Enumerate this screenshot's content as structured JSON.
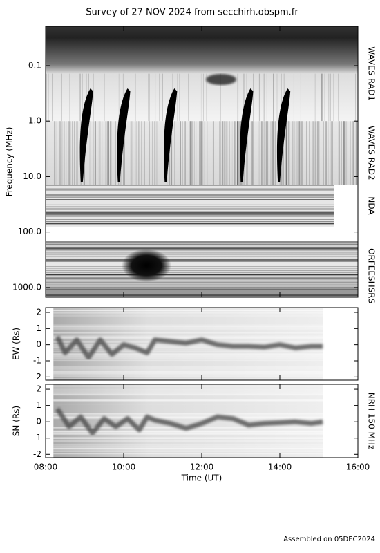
{
  "title": "Survey of 27 NOV 2024 from secchirh.obspm.fr",
  "nrh_label": "NRH 150 MHz",
  "footer": "Assembled on 05DEC2024",
  "chart_data": [
    {
      "type": "spectrogram",
      "ylabel": "Frequency (MHz)",
      "log_y": true,
      "ylim": [
        0.0195,
        1500
      ],
      "yticks": [
        {
          "value": 0.1,
          "label": "0.1"
        },
        {
          "value": 1,
          "label": "1.0"
        },
        {
          "value": 10,
          "label": "10.0"
        },
        {
          "value": 100,
          "label": "100.0"
        },
        {
          "value": 1000,
          "label": "1000.0"
        }
      ],
      "xlim": [
        8,
        16
      ],
      "bands": [
        {
          "name": "WAVES RAD1",
          "range": [
            0.0195,
            1
          ],
          "time": [
            8,
            16
          ]
        },
        {
          "name": "WAVES RAD2",
          "range": [
            1,
            14
          ],
          "time": [
            8,
            16
          ]
        },
        {
          "name": "NDA",
          "range": [
            14,
            80
          ],
          "time": [
            8,
            15.38
          ]
        },
        {
          "name": "ORFEES",
          "range": [
            150,
            1000
          ],
          "time": [
            8,
            16
          ]
        },
        {
          "name": "HSRS",
          "range": [
            1000,
            1500
          ],
          "time": [
            8,
            16
          ]
        }
      ],
      "bursts": [
        8.9,
        9.85,
        11.05,
        13.0,
        13.95
      ]
    },
    {
      "type": "line",
      "ylabel": "EW (Rs)",
      "ylim": [
        -2.2,
        2.3
      ],
      "yticks": [
        -2,
        -1,
        0,
        1,
        2
      ],
      "xlim": [
        8,
        16
      ],
      "extent": [
        8.2,
        15.1
      ],
      "x": [
        8.3,
        8.5,
        8.8,
        9.1,
        9.4,
        9.7,
        10.0,
        10.3,
        10.6,
        10.8,
        11.2,
        11.6,
        12.0,
        12.4,
        12.8,
        13.2,
        13.6,
        14.0,
        14.4,
        14.8,
        15.1
      ],
      "values": [
        0.5,
        -0.5,
        0.3,
        -0.8,
        0.3,
        -0.6,
        0,
        -0.2,
        -0.5,
        0.3,
        0.2,
        0.1,
        0.3,
        0,
        -0.1,
        -0.1,
        -0.15,
        0,
        -0.2,
        -0.1,
        -0.1
      ]
    },
    {
      "type": "line",
      "ylabel": "SN (Rs)",
      "xlabel": "Time (UT)",
      "ylim": [
        -2.2,
        2.3
      ],
      "yticks": [
        -2,
        -1,
        0,
        1,
        2
      ],
      "xlim": [
        8,
        16
      ],
      "xticks": [
        {
          "value": 8,
          "label": "08:00"
        },
        {
          "value": 10,
          "label": "10:00"
        },
        {
          "value": 12,
          "label": "12:00"
        },
        {
          "value": 14,
          "label": "14:00"
        },
        {
          "value": 16,
          "label": "16:00"
        }
      ],
      "extent": [
        8.2,
        15.1
      ],
      "x": [
        8.3,
        8.6,
        8.9,
        9.2,
        9.5,
        9.8,
        10.1,
        10.4,
        10.6,
        10.8,
        11.2,
        11.6,
        12.0,
        12.4,
        12.8,
        13.2,
        13.6,
        14.0,
        14.4,
        14.8,
        15.1
      ],
      "values": [
        0.8,
        -0.3,
        0.3,
        -0.7,
        0.2,
        -0.3,
        0.2,
        -0.5,
        0.3,
        0.1,
        -0.1,
        -0.4,
        -0.1,
        0.3,
        0.2,
        -0.2,
        -0.1,
        -0.05,
        0,
        -0.1,
        0
      ]
    }
  ]
}
